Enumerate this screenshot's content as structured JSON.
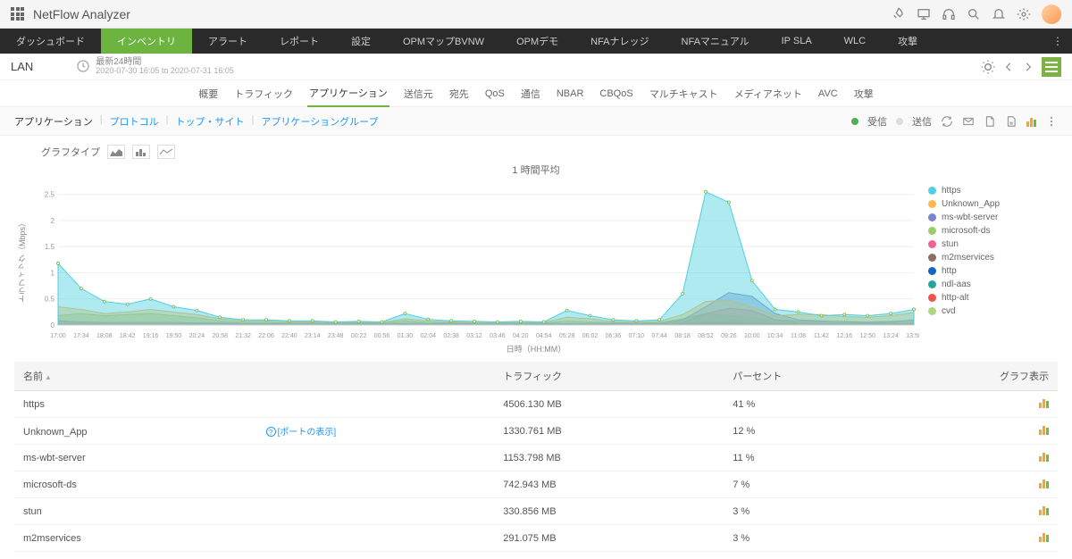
{
  "app": {
    "title": "NetFlow Analyzer"
  },
  "mainnav": {
    "items": [
      "ダッシュボード",
      "インベントリ",
      "アラート",
      "レポート",
      "設定",
      "OPMマップBVNW",
      "OPMデモ",
      "NFAナレッジ",
      "NFAマニュアル",
      "IP SLA",
      "WLC",
      "攻撃"
    ],
    "active_index": 1
  },
  "context": {
    "name": "LAN",
    "time_label": "最新24時間",
    "time_range": "2020-07-30 16:05 to 2020-07-31 16:05"
  },
  "subnav": {
    "items": [
      "概要",
      "トラフィック",
      "アプリケーション",
      "送信元",
      "宛先",
      "QoS",
      "通信",
      "NBAR",
      "CBQoS",
      "マルチキャスト",
      "メディアネット",
      "AVC",
      "攻撃"
    ],
    "active_index": 2
  },
  "filters": {
    "tabs": [
      "アプリケーション",
      "プロトコル",
      "トップ・サイト",
      "アプリケーショングループ"
    ],
    "active_index": 0,
    "rx_label": "受信",
    "tx_label": "送信"
  },
  "chart": {
    "type_label": "グラフタイプ",
    "title": "1 時間平均",
    "ylabel": "トラフィック（Mbps）",
    "xlabel": "日時（HH:MM）",
    "ylim": [
      0,
      2.7
    ],
    "yticks": [
      0,
      0.5,
      1,
      1.5,
      2,
      2.5
    ],
    "xticks": [
      "17:00",
      "17:34",
      "18:08",
      "18:42",
      "19:16",
      "19:50",
      "20:24",
      "20:58",
      "21:32",
      "22:06",
      "22:40",
      "23:14",
      "23:48",
      "00:22",
      "00:56",
      "01:30",
      "02:04",
      "02:38",
      "03:12",
      "03:46",
      "04:20",
      "04:54",
      "05:28",
      "06:02",
      "06:36",
      "07:10",
      "07:44",
      "08:18",
      "08:52",
      "09:26",
      "10:00",
      "10:34",
      "11:08",
      "11:42",
      "12:16",
      "12:50",
      "13:24",
      "13:58"
    ],
    "background": "#ffffff",
    "grid_color": "#eeeeee",
    "series": [
      {
        "name": "https",
        "color": "#4dd0e1",
        "data": [
          1.18,
          0.7,
          0.45,
          0.4,
          0.5,
          0.35,
          0.28,
          0.15,
          0.1,
          0.1,
          0.08,
          0.08,
          0.06,
          0.07,
          0.06,
          0.22,
          0.11,
          0.08,
          0.07,
          0.06,
          0.07,
          0.06,
          0.28,
          0.18,
          0.1,
          0.08,
          0.1,
          0.6,
          2.55,
          2.35,
          0.85,
          0.3,
          0.25,
          0.18,
          0.2,
          0.18,
          0.22,
          0.3
        ]
      },
      {
        "name": "Unknown_App",
        "color": "#ffb74d",
        "data": [
          0.35,
          0.3,
          0.22,
          0.25,
          0.3,
          0.25,
          0.2,
          0.12,
          0.08,
          0.08,
          0.06,
          0.06,
          0.05,
          0.06,
          0.05,
          0.12,
          0.08,
          0.06,
          0.05,
          0.05,
          0.05,
          0.05,
          0.15,
          0.12,
          0.07,
          0.06,
          0.07,
          0.2,
          0.45,
          0.48,
          0.35,
          0.18,
          0.2,
          0.2,
          0.16,
          0.15,
          0.18,
          0.24
        ]
      },
      {
        "name": "ms-wbt-server",
        "color": "#7986cb",
        "data": [
          0.08,
          0.06,
          0.05,
          0.05,
          0.05,
          0.05,
          0.04,
          0.04,
          0.03,
          0.03,
          0.03,
          0.03,
          0.03,
          0.03,
          0.03,
          0.03,
          0.03,
          0.03,
          0.03,
          0.03,
          0.03,
          0.03,
          0.03,
          0.03,
          0.03,
          0.03,
          0.03,
          0.1,
          0.35,
          0.62,
          0.55,
          0.22,
          0.1,
          0.08,
          0.06,
          0.05,
          0.06,
          0.1
        ]
      },
      {
        "name": "microsoft-ds",
        "color": "#9ccc65",
        "data": [
          0.18,
          0.22,
          0.18,
          0.2,
          0.22,
          0.18,
          0.14,
          0.08,
          0.05,
          0.05,
          0.04,
          0.04,
          0.04,
          0.04,
          0.04,
          0.08,
          0.05,
          0.04,
          0.04,
          0.04,
          0.04,
          0.04,
          0.08,
          0.06,
          0.05,
          0.04,
          0.05,
          0.12,
          0.22,
          0.18,
          0.14,
          0.1,
          0.08,
          0.07,
          0.07,
          0.06,
          0.07,
          0.09
        ]
      },
      {
        "name": "stun",
        "color": "#f06292",
        "data": [
          0.02,
          0.02,
          0.02,
          0.02,
          0.02,
          0.02,
          0.02,
          0.02,
          0.02,
          0.02,
          0.02,
          0.02,
          0.02,
          0.02,
          0.02,
          0.02,
          0.02,
          0.02,
          0.02,
          0.02,
          0.02,
          0.02,
          0.02,
          0.02,
          0.02,
          0.02,
          0.02,
          0.05,
          0.22,
          0.32,
          0.28,
          0.1,
          0.04,
          0.03,
          0.03,
          0.03,
          0.03,
          0.03
        ]
      },
      {
        "name": "m2mservices",
        "color": "#8d6e63",
        "data": [
          0.02,
          0.02,
          0.02,
          0.02,
          0.02,
          0.02,
          0.02,
          0.02,
          0.02,
          0.02,
          0.02,
          0.02,
          0.02,
          0.02,
          0.02,
          0.02,
          0.02,
          0.02,
          0.02,
          0.02,
          0.02,
          0.02,
          0.02,
          0.02,
          0.02,
          0.02,
          0.02,
          0.03,
          0.05,
          0.05,
          0.04,
          0.03,
          0.03,
          0.03,
          0.03,
          0.03,
          0.03,
          0.03
        ]
      },
      {
        "name": "http",
        "color": "#1565c0",
        "data": [
          0.03,
          0.03,
          0.02,
          0.02,
          0.02,
          0.02,
          0.02,
          0.02,
          0.02,
          0.02,
          0.02,
          0.02,
          0.02,
          0.02,
          0.02,
          0.02,
          0.02,
          0.02,
          0.02,
          0.02,
          0.02,
          0.02,
          0.02,
          0.02,
          0.02,
          0.02,
          0.02,
          0.02,
          0.03,
          0.03,
          0.03,
          0.02,
          0.02,
          0.02,
          0.02,
          0.02,
          0.02,
          0.02
        ]
      },
      {
        "name": "ndl-aas",
        "color": "#26a69a",
        "data": [
          0.01,
          0.01,
          0.01,
          0.01,
          0.01,
          0.01,
          0.01,
          0.01,
          0.01,
          0.01,
          0.01,
          0.01,
          0.01,
          0.01,
          0.01,
          0.01,
          0.01,
          0.01,
          0.01,
          0.01,
          0.01,
          0.01,
          0.01,
          0.01,
          0.01,
          0.01,
          0.01,
          0.02,
          0.03,
          0.03,
          0.02,
          0.02,
          0.02,
          0.02,
          0.02,
          0.02,
          0.02,
          0.02
        ]
      },
      {
        "name": "http-alt",
        "color": "#ef5350",
        "data": [
          0.01,
          0.01,
          0.01,
          0.01,
          0.01,
          0.01,
          0.01,
          0.01,
          0.01,
          0.01,
          0.01,
          0.01,
          0.01,
          0.01,
          0.01,
          0.01,
          0.01,
          0.01,
          0.01,
          0.01,
          0.01,
          0.01,
          0.01,
          0.01,
          0.01,
          0.01,
          0.01,
          0.01,
          0.02,
          0.02,
          0.02,
          0.01,
          0.01,
          0.01,
          0.01,
          0.01,
          0.01,
          0.01
        ]
      },
      {
        "name": "cvd",
        "color": "#aed581",
        "data": [
          0.01,
          0.01,
          0.01,
          0.01,
          0.01,
          0.01,
          0.01,
          0.01,
          0.01,
          0.01,
          0.01,
          0.01,
          0.01,
          0.01,
          0.01,
          0.01,
          0.01,
          0.01,
          0.01,
          0.01,
          0.01,
          0.01,
          0.01,
          0.01,
          0.01,
          0.01,
          0.01,
          0.01,
          0.02,
          0.02,
          0.01,
          0.01,
          0.01,
          0.01,
          0.01,
          0.01,
          0.01,
          0.01
        ]
      }
    ]
  },
  "table": {
    "columns": {
      "name": "名前",
      "traffic": "トラフィック",
      "percent": "パーセント",
      "show": "グラフ表示"
    },
    "port_link": "[ポートの表示]",
    "rows": [
      {
        "name": "https",
        "traffic": "4506.130 MB",
        "percent": "41 %"
      },
      {
        "name": "Unknown_App",
        "traffic": "1330.761 MB",
        "percent": "12 %",
        "port_link": true
      },
      {
        "name": "ms-wbt-server",
        "traffic": "1153.798 MB",
        "percent": "11 %"
      },
      {
        "name": "microsoft-ds",
        "traffic": "742.943 MB",
        "percent": "7 %"
      },
      {
        "name": "stun",
        "traffic": "330.856 MB",
        "percent": "3 %"
      },
      {
        "name": "m2mservices",
        "traffic": "291.075 MB",
        "percent": "3 %"
      }
    ],
    "bar_icon_colors": [
      "#f5a623",
      "#f5a623",
      "#7cb342"
    ]
  }
}
